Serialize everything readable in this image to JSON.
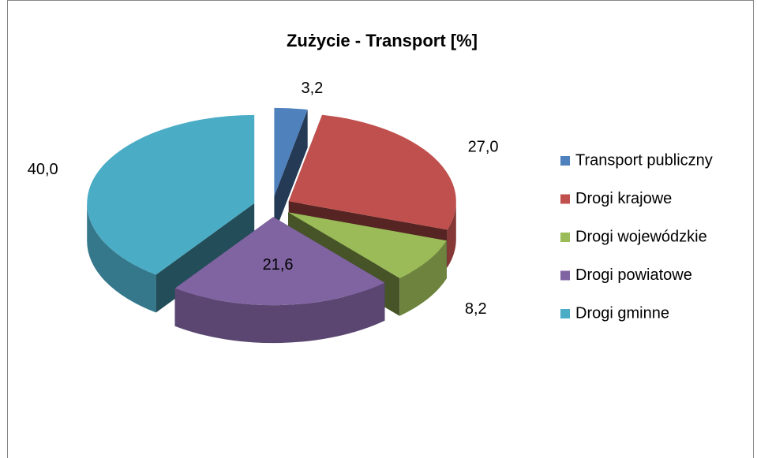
{
  "chart_data": {
    "type": "pie",
    "title": "Zużycie - Transport [%]",
    "categories": [
      "Transport publiczny",
      "Drogi krajowe",
      "Drogi wojewódzkie",
      "Drogi powiatowe",
      "Drogi gminne"
    ],
    "values": [
      3.2,
      27.0,
      8.2,
      21.6,
      40.0
    ],
    "value_labels": [
      "3,2",
      "27,0",
      "8,2",
      "21,6",
      "40,0"
    ],
    "colors": [
      "#4f81bd",
      "#c0504d",
      "#9bbb59",
      "#8064a2",
      "#4bacc6"
    ],
    "legend": "right"
  }
}
